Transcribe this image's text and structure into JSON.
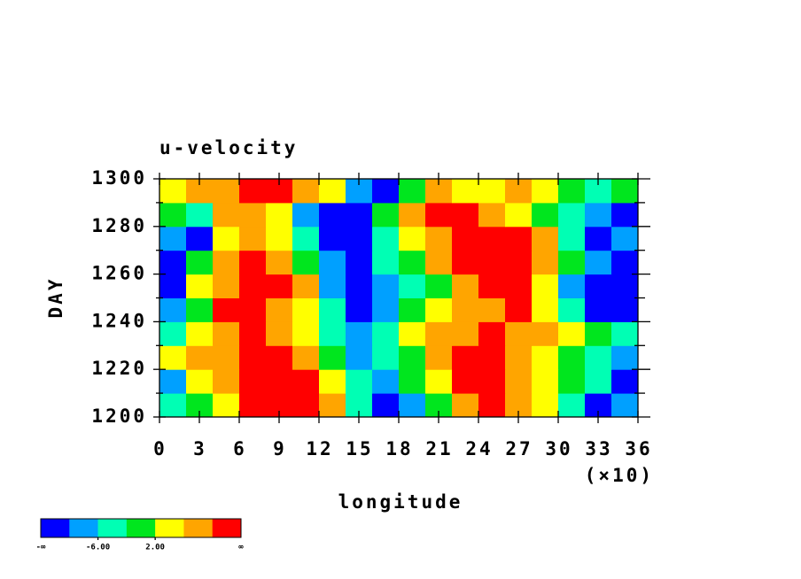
{
  "chart_data": {
    "type": "contour",
    "title": "u-velocity",
    "x_label": "longitude",
    "x_multiplier_label": "(×10)",
    "y_label": "DAY",
    "xlim": [
      0,
      36
    ],
    "xticks": [
      0,
      3,
      6,
      9,
      12,
      15,
      18,
      21,
      24,
      27,
      30,
      33,
      36
    ],
    "ylim": [
      1200,
      1300
    ],
    "yticks": [
      1200,
      1220,
      1240,
      1260,
      1280,
      1300
    ],
    "yminor_ticks": [
      1210,
      1230,
      1250,
      1270,
      1290
    ],
    "x": [
      1,
      3,
      5,
      7,
      9,
      11,
      13,
      15,
      17,
      19,
      21,
      23,
      25,
      27,
      29,
      31,
      33,
      35
    ],
    "y": [
      1205,
      1215,
      1225,
      1235,
      1245,
      1255,
      1265,
      1275,
      1285,
      1295
    ],
    "values": [
      [
        -4,
        0,
        4,
        12,
        12,
        12,
        8,
        -4,
        -12,
        -8,
        0,
        8,
        12,
        8,
        4,
        -4,
        -12,
        -8
      ],
      [
        -8,
        4,
        8,
        12,
        12,
        12,
        4,
        -4,
        -8,
        0,
        4,
        12,
        12,
        8,
        4,
        0,
        -4,
        -12
      ],
      [
        4,
        8,
        8,
        12,
        12,
        8,
        0,
        -8,
        -4,
        0,
        8,
        12,
        12,
        8,
        4,
        0,
        -4,
        -8
      ],
      [
        -4,
        4,
        8,
        12,
        8,
        4,
        -4,
        -8,
        -4,
        4,
        8,
        8,
        12,
        8,
        8,
        4,
        0,
        -4
      ],
      [
        -8,
        0,
        12,
        12,
        8,
        4,
        -4,
        -12,
        -8,
        0,
        4,
        8,
        8,
        12,
        4,
        -4,
        -12,
        -12
      ],
      [
        -12,
        4,
        8,
        12,
        12,
        8,
        -8,
        -12,
        -8,
        -4,
        0,
        8,
        12,
        12,
        4,
        -8,
        -12,
        -12
      ],
      [
        -12,
        0,
        8,
        12,
        8,
        0,
        -8,
        -12,
        -4,
        0,
        8,
        12,
        12,
        12,
        8,
        0,
        -8,
        -12
      ],
      [
        -8,
        -12,
        4,
        8,
        4,
        -4,
        -12,
        -12,
        -4,
        4,
        8,
        12,
        12,
        12,
        8,
        -4,
        -12,
        -8
      ],
      [
        0,
        -4,
        8,
        8,
        4,
        -8,
        -12,
        -12,
        0,
        8,
        12,
        12,
        8,
        4,
        0,
        -4,
        -8,
        -12
      ],
      [
        4,
        8,
        8,
        12,
        12,
        8,
        4,
        -8,
        -12,
        0,
        8,
        4,
        4,
        8,
        4,
        0,
        -4,
        0
      ]
    ],
    "levels": [
      -10,
      -6,
      -2,
      2,
      6,
      10
    ],
    "colors": [
      "#0000ff",
      "#00a0ff",
      "#00ffb4",
      "#00e61e",
      "#ffff00",
      "#ffa500",
      "#ff0000"
    ],
    "colorbar_min_label": "-∞",
    "colorbar_max_label": "∞",
    "colorbar_ticks": [
      {
        "value": -6,
        "label": "-6.00"
      },
      {
        "value": 2,
        "label": "2.00"
      }
    ]
  }
}
